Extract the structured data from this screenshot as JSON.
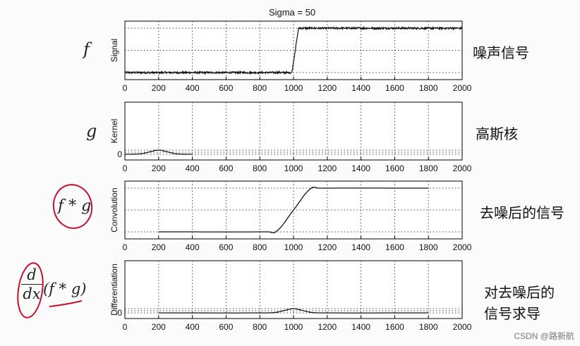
{
  "figure_title": "Sigma = 50",
  "chart_data": [
    {
      "type": "line",
      "ylabel": "Signal",
      "xlim": [
        0,
        2000
      ],
      "ylim": [
        0,
        1
      ],
      "x_ticks": [
        "0",
        "200",
        "400",
        "600",
        "800",
        "1000",
        "1200",
        "1400",
        "1600",
        "1800",
        "2000"
      ],
      "y_ticks": [],
      "series": [
        {
          "x": [
            0,
            990,
            1030,
            2000
          ],
          "values": [
            0,
            0,
            1,
            1
          ],
          "noise": 0.02
        }
      ]
    },
    {
      "type": "line",
      "ylabel": "Kernel",
      "xlim": [
        0,
        2000
      ],
      "ylim": [
        0,
        1
      ],
      "x_ticks": [
        "0",
        "200",
        "400",
        "600",
        "800",
        "1000",
        "1200",
        "1400",
        "1600",
        "1800",
        "2000"
      ],
      "y_ticks": [
        "0"
      ],
      "series": [
        {
          "x": [
            0,
            100,
            150,
            200,
            250,
            300,
            400
          ],
          "values": [
            0,
            0.14,
            0.61,
            1,
            0.61,
            0.14,
            0
          ]
        }
      ]
    },
    {
      "type": "line",
      "ylabel": "Convolution",
      "xlim": [
        0,
        2000
      ],
      "ylim": [
        0,
        1
      ],
      "x_ticks": [
        "0",
        "200",
        "400",
        "600",
        "800",
        "1000",
        "1200",
        "1400",
        "1600",
        "1800",
        "2000"
      ],
      "y_ticks": [],
      "series": [
        {
          "x": [
            200,
            850,
            900,
            1000,
            1100,
            1150,
            1800
          ],
          "values": [
            0,
            0,
            0.02,
            0.5,
            0.98,
            1,
            1
          ]
        }
      ]
    },
    {
      "type": "line",
      "ylabel": "Differentiation",
      "xlim": [
        0,
        2000
      ],
      "ylim": [
        0,
        1
      ],
      "x_ticks": [
        "0",
        "200",
        "400",
        "600",
        "800",
        "1000",
        "1200",
        "1400",
        "1600",
        "1800",
        "2000"
      ],
      "y_ticks": [
        "0"
      ],
      "series": [
        {
          "x": [
            200,
            850,
            900,
            950,
            1000,
            1050,
            1100,
            1150,
            1800
          ],
          "values": [
            0,
            0,
            0.14,
            0.61,
            1,
            0.61,
            0.14,
            0,
            0
          ]
        }
      ]
    }
  ],
  "annotations": {
    "row1_math": "f",
    "row1_text": "噪声信号",
    "row2_math": "g",
    "row2_text": "高斯核",
    "row3_math": "f * g",
    "row3_text": "去噪后的信号",
    "row4_math_num": "d",
    "row4_math_den": "dx",
    "row4_math_rest": "(f * g)",
    "row4_text_line1": "对去噪后的",
    "row4_text_line2": "信号求导"
  },
  "watermark": "CSDN @路新航",
  "colors": {
    "line": "#111111",
    "grid": "#333333",
    "axes": "#000000",
    "annotation_red": "#c8102e"
  }
}
